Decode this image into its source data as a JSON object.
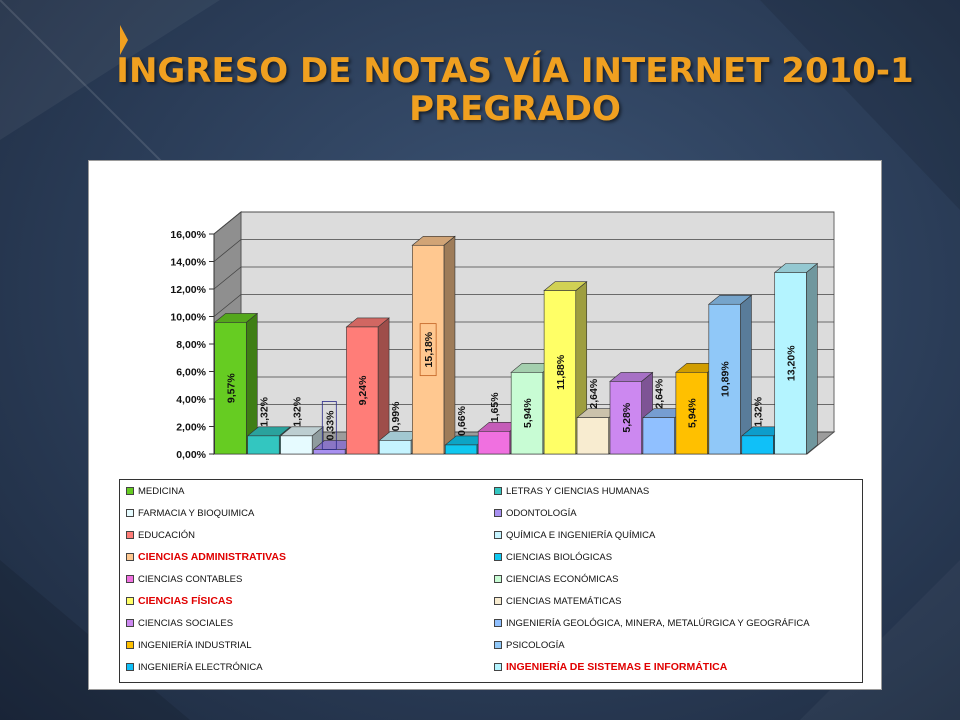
{
  "title": {
    "line1": "INGRESO DE NOTAS VÍA INTERNET 2010-1",
    "line2": "PREGRADO"
  },
  "colors": {
    "title": "#f0a020",
    "highlight_legend": "#e00000",
    "background": "#2b3d58"
  },
  "chart_data": {
    "type": "bar",
    "ylim": [
      0,
      16
    ],
    "y_ticks": [
      "0,00%",
      "2,00%",
      "4,00%",
      "6,00%",
      "8,00%",
      "10,00%",
      "12,00%",
      "14,00%",
      "16,00%"
    ],
    "grid": true,
    "legend_position": "bottom",
    "series": [
      {
        "name": "MEDICINA",
        "value": 9.57,
        "label": "9,57%",
        "color": "#66cc22",
        "highlight": false
      },
      {
        "name": "LETRAS Y CIENCIAS HUMANAS",
        "value": 1.32,
        "label": "1,32%",
        "color": "#33c6c0",
        "highlight": false
      },
      {
        "name": "FARMACIA Y BIOQUIMICA",
        "value": 1.32,
        "label": "1,32%",
        "color": "#e6fbff",
        "highlight": false
      },
      {
        "name": "ODONTOLOGÍA",
        "value": 0.33,
        "label": "0,33%",
        "color": "#a890f0",
        "highlight": false
      },
      {
        "name": "EDUCACIÓN",
        "value": 9.24,
        "label": "9,24%",
        "color": "#ff7d78",
        "highlight": false
      },
      {
        "name": "QUÍMICA E INGENIERÍA QUÍMICA",
        "value": 0.99,
        "label": "0,99%",
        "color": "#c6f4ff",
        "highlight": false
      },
      {
        "name": "CIENCIAS ADMINISTRATIVAS",
        "value": 15.18,
        "label": "15,18%",
        "color": "#ffc890",
        "highlight": true
      },
      {
        "name": "CIENCIAS BIOLÓGICAS",
        "value": 0.66,
        "label": "0,66%",
        "color": "#10c8f0",
        "highlight": false
      },
      {
        "name": "CIENCIAS CONTABLES",
        "value": 1.65,
        "label": "1,65%",
        "color": "#f070e0",
        "highlight": false
      },
      {
        "name": "CIENCIAS ECONÓMICAS",
        "value": 5.94,
        "label": "5,94%",
        "color": "#c8fcd4",
        "highlight": false
      },
      {
        "name": "CIENCIAS FÍSICAS",
        "value": 11.88,
        "label": "11,88%",
        "color": "#ffff66",
        "highlight": true
      },
      {
        "name": "CIENCIAS MATEMÁTICAS",
        "value": 2.64,
        "label": "2,64%",
        "color": "#f8ecd0",
        "highlight": false
      },
      {
        "name": "CIENCIAS SOCIALES",
        "value": 5.28,
        "label": "5,28%",
        "color": "#cc88f0",
        "highlight": false
      },
      {
        "name": "INGENIERÍA GEOLÓGICA, MINERA, METALÚRGICA Y GEOGRÁFICA",
        "value": 2.64,
        "label": "2,64%",
        "color": "#90c0ff",
        "highlight": false
      },
      {
        "name": "INGENIERÍA INDUSTRIAL",
        "value": 5.94,
        "label": "5,94%",
        "color": "#ffc000",
        "highlight": false
      },
      {
        "name": "PSICOLOGÍA",
        "value": 10.89,
        "label": "10,89%",
        "color": "#90c8f8",
        "highlight": false
      },
      {
        "name": "INGENIERÍA ELECTRÓNICA",
        "value": 1.32,
        "label": "1,32%",
        "color": "#10c0f8",
        "highlight": false
      },
      {
        "name": "INGENIERÍA DE SISTEMAS E INFORMÁTICA",
        "value": 13.2,
        "label": "13,20%",
        "color": "#b4f4ff",
        "highlight": true
      }
    ]
  }
}
